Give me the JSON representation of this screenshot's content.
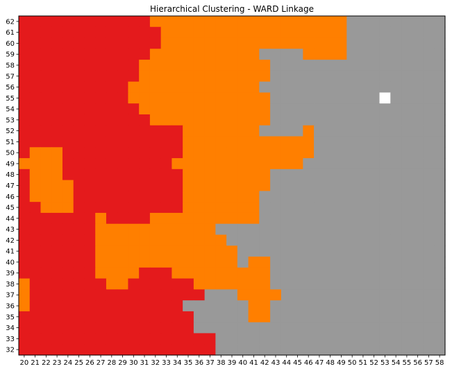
{
  "chart_data": {
    "type": "heatmap",
    "title": "Hierarchical Clustering - WARD Linkage",
    "xlabel": "",
    "ylabel": "",
    "x": [
      20,
      21,
      22,
      23,
      24,
      25,
      26,
      27,
      28,
      29,
      30,
      31,
      32,
      33,
      34,
      35,
      36,
      37,
      38,
      39,
      40,
      41,
      42,
      43,
      44,
      45,
      46,
      47,
      48,
      49,
      50,
      51,
      52,
      53,
      54,
      55,
      56,
      57,
      58
    ],
    "y": [
      62,
      61,
      60,
      59,
      58,
      57,
      56,
      55,
      54,
      53,
      52,
      51,
      50,
      49,
      48,
      47,
      46,
      45,
      44,
      43,
      42,
      41,
      40,
      39,
      38,
      37,
      36,
      35,
      34,
      33,
      32
    ],
    "clusters": [
      {
        "id": 0,
        "color": "#e41a1c"
      },
      {
        "id": 1,
        "color": "#ff7f00"
      },
      {
        "id": 2,
        "color": "#999999"
      }
    ],
    "missing_color": "#ffffff",
    "grid": false,
    "legend": "none",
    "cells": [
      "000000000000111111111111111111222222222",
      "000000000000011111111111111111222222222",
      "000000000000011111111111111111222222222",
      "000000000000111111111122221111222222222",
      "000000000001111111111112222222222222222",
      "000000000001111111111112222222222222222",
      "000000000011111111111122222222222222222",
      "000000000011111111111112222222222-22222",
      "000000000001111111111112222222222222222",
      "000000000000111111111112222222222222222",
      "000000000000000111111122221222222222222",
      "000000000000000111111111111222222222222",
      "011100000000000111111111111222222222222",
      "111100000000001111111111112222222222222",
      "011100000000000111111112222222222222222",
      "011110000000000111111112222222222222222",
      "011110000000000111111122222222222222222",
      "001110000000000111111122222222222222222",
      "000000010000111111111122222222222222222",
      "000000011111111111222222222222222222222",
      "000000011111111111122222222222222222222",
      "000000011111111111112222222222222222222",
      "000000011111111111112112222222222222222",
      "000000011110001111111112222222222222222",
      "100000001100000011111112222222222222222",
      "100000000000000002221111222222222222222",
      "100000000000000222222112222222222222222",
      "000000000000000022222112222222222222222",
      "000000000000000022222222222222222222222",
      "000000000000000000222222222222222222222",
      "000000000000000000222222222222222222222"
    ]
  }
}
